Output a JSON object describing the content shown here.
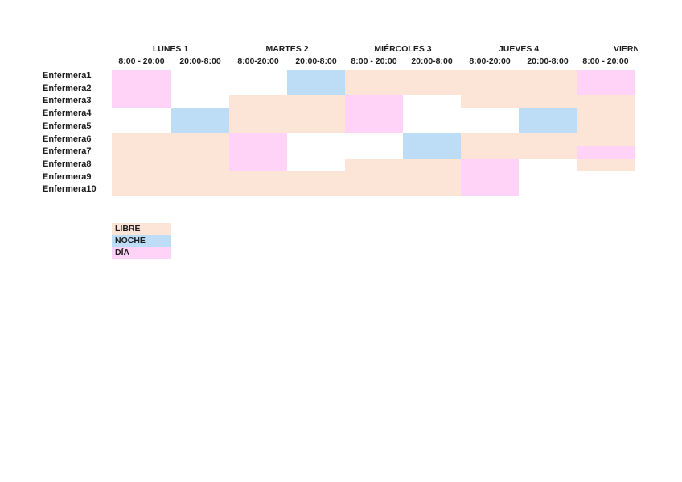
{
  "page": {
    "background": "#ffffff"
  },
  "chart_data": {
    "type": "table",
    "title": "",
    "description_visible_text_only": true,
    "row_header": [
      "Enfermera1",
      "Enfermera2",
      "Enfermera3",
      "Enfermera4",
      "Enfermera5",
      "Enfermera6",
      "Enfermera7",
      "Enfermera8",
      "Enfermera9",
      "Enfermera10"
    ],
    "days": [
      {
        "label": "LUNES 1",
        "times": [
          "8:00 - 20:00",
          "20:00-8:00"
        ],
        "clipped": false
      },
      {
        "label": "MARTES 2",
        "times": [
          "8:00-20:00",
          "20:00-8:00"
        ],
        "clipped": false
      },
      {
        "label": "MIÉRCOLES 3",
        "times": [
          "8:00 - 20:00",
          "20:00-8:00"
        ],
        "clipped": false
      },
      {
        "label": "JUEVES 4",
        "times": [
          "8:00-20:00",
          "20:00-8:00"
        ],
        "clipped": false
      },
      {
        "label": "VIERN",
        "times": [
          "8:00 - 20:00"
        ],
        "clipped": true
      }
    ],
    "matrix": [
      [
        "D",
        "",
        "",
        "N",
        "L",
        "L",
        "L",
        "L",
        "D"
      ],
      [
        "D",
        "",
        "",
        "N",
        "L",
        "L",
        "L",
        "L",
        "D"
      ],
      [
        "D",
        "",
        "L",
        "L",
        "D",
        "",
        "L",
        "L",
        "L"
      ],
      [
        "",
        "N",
        "L",
        "L",
        "D",
        "",
        "",
        "N",
        "L"
      ],
      [
        "",
        "N",
        "L",
        "L",
        "D",
        "",
        "",
        "N",
        "L"
      ],
      [
        "L",
        "L",
        "D",
        "",
        "",
        "N",
        "L",
        "L",
        "L"
      ],
      [
        "L",
        "L",
        "D",
        "",
        "",
        "N",
        "L",
        "L",
        "D"
      ],
      [
        "L",
        "L",
        "D",
        "",
        "L",
        "L",
        "D",
        "",
        "L"
      ],
      [
        "L",
        "L",
        "L",
        "L",
        "L",
        "L",
        "D",
        "",
        ""
      ],
      [
        "L",
        "L",
        "L",
        "L",
        "L",
        "L",
        "D",
        "",
        ""
      ]
    ],
    "codes": {
      "L": "LIBRE",
      "N": "NOCHE",
      "D": "DÍA",
      "": "empty"
    },
    "colors": {
      "L": "#FCE4D6",
      "N": "#BDDCF5",
      "D": "#FFD2F8"
    },
    "legend": [
      {
        "label": "LIBRE",
        "code": "L"
      },
      {
        "label": "NOCHE",
        "code": "N"
      },
      {
        "label": "DÍA",
        "code": "D"
      }
    ],
    "legend_position": "bottom-left",
    "grid_lines": "off"
  }
}
